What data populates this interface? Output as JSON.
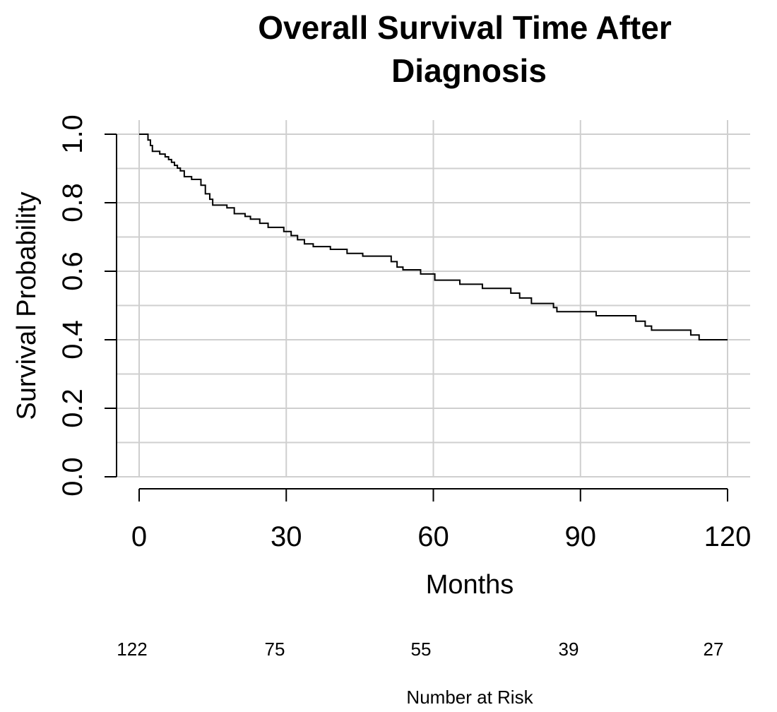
{
  "chart_data": {
    "type": "line",
    "title_lines": [
      "Overall Survival Time After",
      "Diagnosis"
    ],
    "xlabel": "Months",
    "ylabel": "Survival Probability",
    "xlim": [
      0,
      120
    ],
    "ylim": [
      0,
      1
    ],
    "x_ticks": [
      0,
      30,
      60,
      90,
      120
    ],
    "x_tick_labels": [
      "0",
      "30",
      "60",
      "90",
      "120"
    ],
    "y_ticks": [
      0,
      0.2,
      0.4,
      0.6,
      0.8,
      1.0
    ],
    "y_tick_labels": [
      "0.0",
      "0.2",
      "0.4",
      "0.6",
      "0.8",
      "1.0"
    ],
    "grid": true,
    "series": [
      {
        "x": [
          0,
          1.8,
          2.3,
          2.7,
          4.2,
          5.3,
          6.0,
          6.6,
          7.2,
          7.8,
          8.4,
          9.2,
          10.7,
          12.6,
          13.5,
          14.4,
          15.0,
          17.9,
          19.4,
          21.6,
          22.7,
          24.6,
          26.3,
          29.5,
          31.0,
          32.3,
          33.7,
          35.5,
          39.0,
          42.4,
          45.6,
          51.4,
          52.6,
          53.8,
          57.4,
          60.3,
          65.4,
          70.0,
          75.8,
          77.6,
          80.0,
          84.5,
          85.2,
          93.2,
          101.3,
          103.2,
          104.5,
          112.5,
          114.2,
          120
        ],
        "y": [
          1.0,
          0.983,
          0.967,
          0.95,
          0.942,
          0.934,
          0.926,
          0.918,
          0.909,
          0.901,
          0.893,
          0.876,
          0.868,
          0.851,
          0.826,
          0.81,
          0.793,
          0.785,
          0.768,
          0.76,
          0.752,
          0.74,
          0.728,
          0.716,
          0.704,
          0.692,
          0.68,
          0.672,
          0.664,
          0.652,
          0.644,
          0.628,
          0.612,
          0.604,
          0.592,
          0.574,
          0.562,
          0.55,
          0.536,
          0.522,
          0.506,
          0.494,
          0.482,
          0.47,
          0.454,
          0.44,
          0.428,
          0.414,
          0.4,
          0.4
        ]
      }
    ],
    "risk_table": {
      "label": "Number at Risk",
      "times": [
        0,
        30,
        60,
        90,
        120
      ],
      "counts": [
        "122",
        "75",
        "55",
        "39",
        "27"
      ]
    }
  }
}
